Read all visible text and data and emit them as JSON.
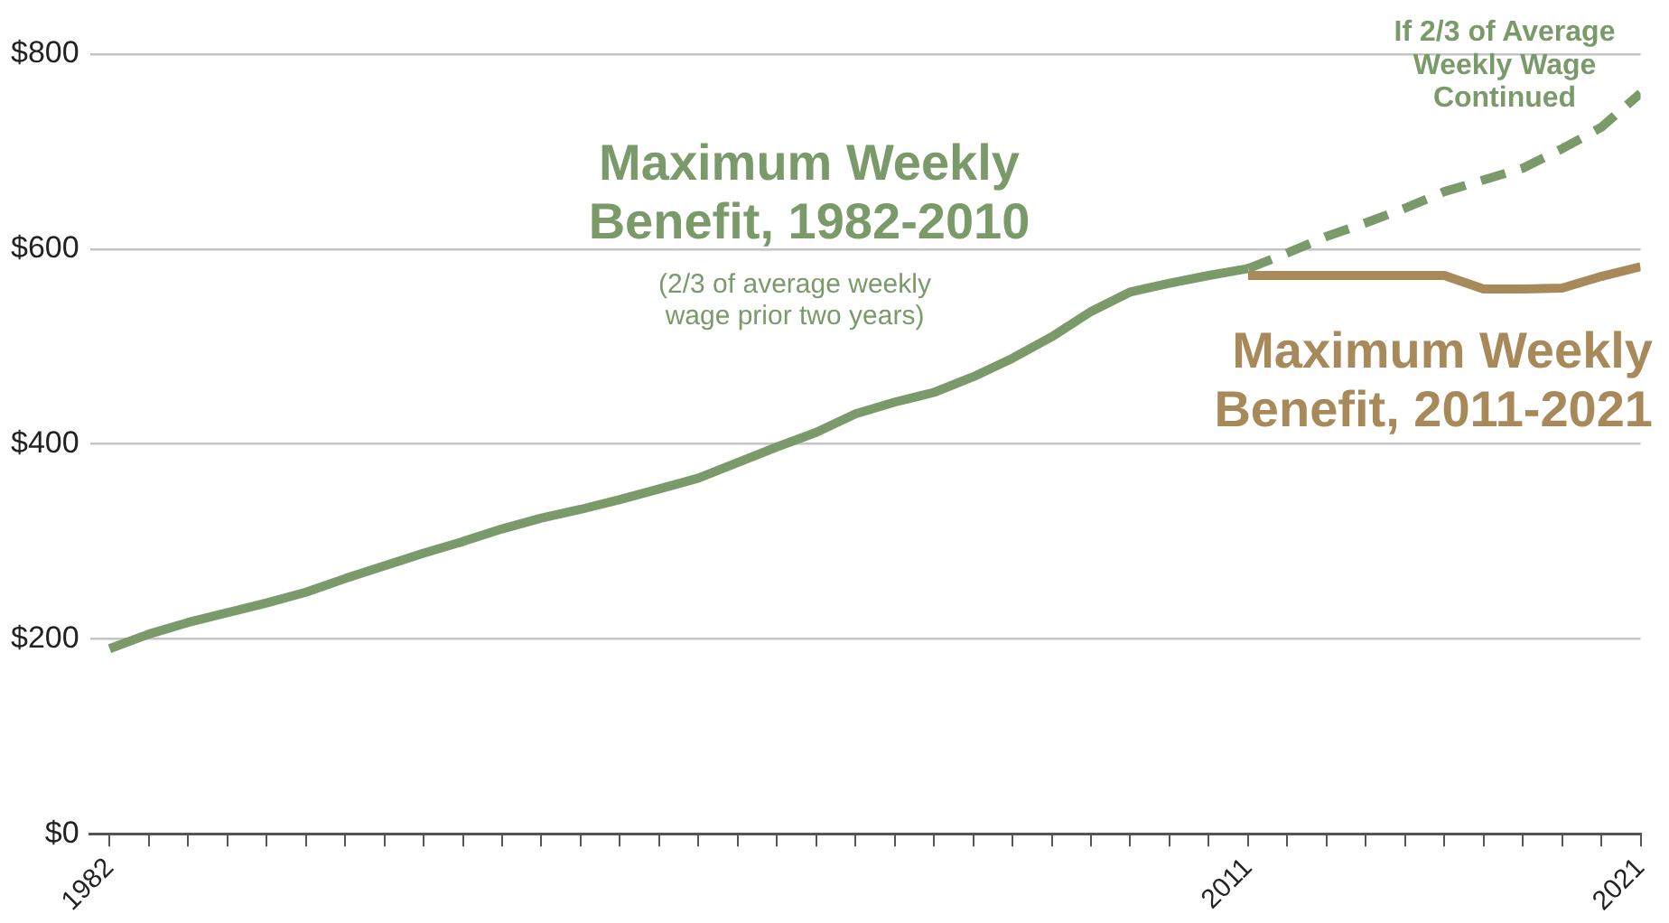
{
  "chart_data": {
    "type": "line",
    "xlim": [
      1981.5,
      2021
    ],
    "xticks": [
      {
        "value": 1982,
        "label": "1982"
      },
      {
        "value": 1983,
        "label": null
      },
      {
        "value": 1984,
        "label": null
      },
      {
        "value": 1985,
        "label": null
      },
      {
        "value": 1986,
        "label": null
      },
      {
        "value": 1987,
        "label": null
      },
      {
        "value": 1988,
        "label": null
      },
      {
        "value": 1989,
        "label": null
      },
      {
        "value": 1990,
        "label": null
      },
      {
        "value": 1991,
        "label": null
      },
      {
        "value": 1992,
        "label": null
      },
      {
        "value": 1993,
        "label": null
      },
      {
        "value": 1994,
        "label": null
      },
      {
        "value": 1995,
        "label": null
      },
      {
        "value": 1996,
        "label": null
      },
      {
        "value": 1997,
        "label": null
      },
      {
        "value": 1998,
        "label": null
      },
      {
        "value": 1999,
        "label": null
      },
      {
        "value": 2000,
        "label": null
      },
      {
        "value": 2001,
        "label": null
      },
      {
        "value": 2002,
        "label": null
      },
      {
        "value": 2003,
        "label": null
      },
      {
        "value": 2004,
        "label": null
      },
      {
        "value": 2005,
        "label": null
      },
      {
        "value": 2006,
        "label": null
      },
      {
        "value": 2007,
        "label": null
      },
      {
        "value": 2008,
        "label": null
      },
      {
        "value": 2009,
        "label": null
      },
      {
        "value": 2010,
        "label": null
      },
      {
        "value": 2011,
        "label": "2011"
      },
      {
        "value": 2012,
        "label": null
      },
      {
        "value": 2013,
        "label": null
      },
      {
        "value": 2014,
        "label": null
      },
      {
        "value": 2015,
        "label": null
      },
      {
        "value": 2016,
        "label": null
      },
      {
        "value": 2017,
        "label": null
      },
      {
        "value": 2018,
        "label": null
      },
      {
        "value": 2019,
        "label": null
      },
      {
        "value": 2020,
        "label": null
      },
      {
        "value": 2021,
        "label": "2021"
      }
    ],
    "ylim": [
      0,
      800
    ],
    "yticks": [
      {
        "value": 0,
        "label": "$0"
      },
      {
        "value": 200,
        "label": "$200"
      },
      {
        "value": 400,
        "label": "$400"
      },
      {
        "value": 600,
        "label": "$600"
      },
      {
        "value": 800,
        "label": "$800"
      }
    ],
    "grid": "y",
    "legend": false,
    "marker": "none",
    "annotations": [
      "(2/3 of average weekly wage prior two years)"
    ],
    "series": [
      {
        "name": "Maximum Weekly Benefit, 2011-2021",
        "color": "#a8895a",
        "line_style": "solid",
        "x": [
          2011,
          2012,
          2013,
          2014,
          2015,
          2016,
          2017,
          2018,
          2019,
          2020,
          2021
        ],
        "values": [
          573,
          573,
          573,
          573,
          573,
          573,
          559,
          559,
          560,
          572,
          582
        ]
      },
      {
        "name": "If 2/3 of Average Weekly Wage Continued",
        "color": "#7a9a6a",
        "line_style": "dashed",
        "x": [
          2011,
          2012,
          2013,
          2014,
          2015,
          2016,
          2017,
          2018,
          2019,
          2020,
          2021
        ],
        "values": [
          580,
          596,
          613,
          627,
          642,
          659,
          671,
          683,
          703,
          725,
          760
        ]
      },
      {
        "name": "Maximum Weekly Benefit, 1982-2010",
        "color": "#7a9a6a",
        "line_style": "solid",
        "x": [
          1982,
          1983,
          1984,
          1985,
          1986,
          1987,
          1988,
          1989,
          1990,
          1991,
          1992,
          1993,
          1994,
          1995,
          1996,
          1997,
          1998,
          1999,
          2000,
          2001,
          2002,
          2003,
          2004,
          2005,
          2006,
          2007,
          2008,
          2009,
          2010,
          2011
        ],
        "values": [
          190,
          205,
          217,
          227,
          237,
          248,
          262,
          275,
          288,
          300,
          313,
          324,
          333,
          343,
          354,
          365,
          381,
          397,
          412,
          431,
          443,
          453,
          469,
          488,
          510,
          536,
          556,
          565,
          573,
          580
        ]
      }
    ]
  }
}
